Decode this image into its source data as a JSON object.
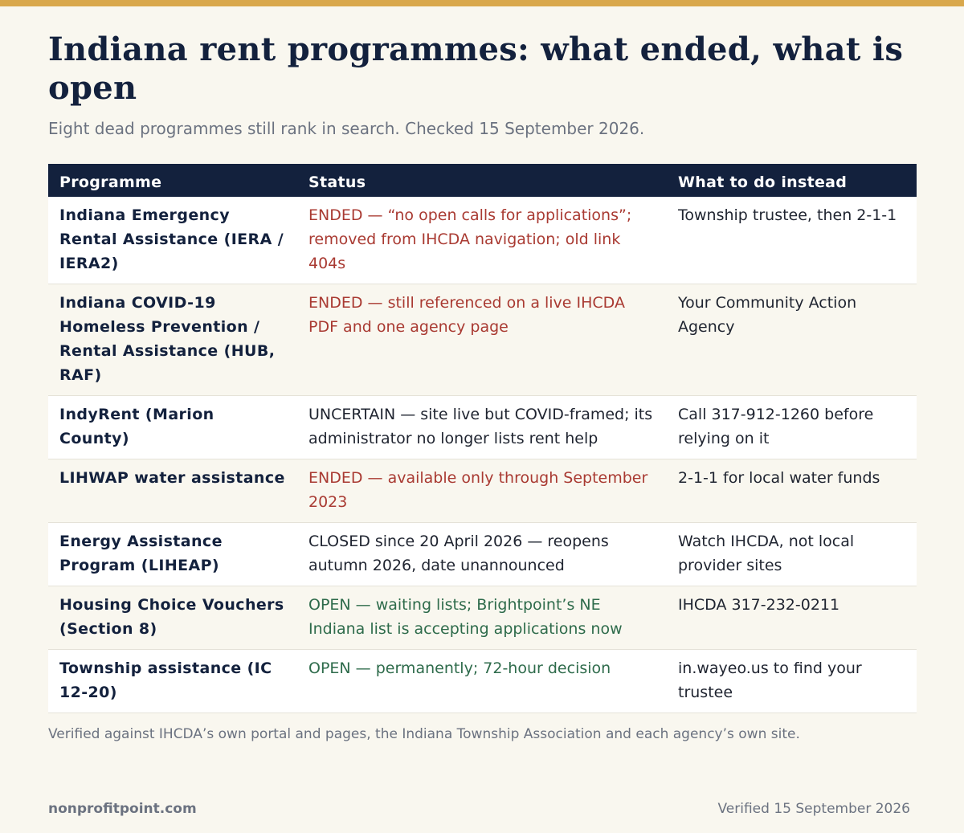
{
  "colors": {
    "accent_bar": "#d9a84c",
    "header_bg": "#13213d",
    "ended": "#a93a32",
    "open": "#2e6b4b",
    "page_bg": "#f9f7ef"
  },
  "header": {
    "title": "Indiana rent programmes: what ended, what is open",
    "subtitle": "Eight dead programmes still rank in search. Checked 15 September 2026."
  },
  "table": {
    "columns": [
      "Programme",
      "Status",
      "What to do instead"
    ],
    "rows": [
      {
        "programme": "Indiana Emergency Rental Assistance (IERA / IERA2)",
        "status": "ENDED — “no open calls for applications”; removed from IHCDA navigation; old link 404s",
        "status_kind": "ended",
        "instead": "Township trustee, then 2-1-1"
      },
      {
        "programme": "Indiana COVID-19 Homeless Prevention / Rental Assistance (HUB, RAF)",
        "status": "ENDED — still referenced on a live IHCDA PDF and one agency page",
        "status_kind": "ended",
        "instead": "Your Community Action Agency"
      },
      {
        "programme": "IndyRent (Marion County)",
        "status": "UNCERTAIN — site live but COVID-framed; its administrator no longer lists rent help",
        "status_kind": "neutral",
        "instead": "Call 317-912-1260 before relying on it"
      },
      {
        "programme": "LIHWAP water assistance",
        "status": "ENDED — available only through September 2023",
        "status_kind": "ended",
        "instead": "2-1-1 for local water funds"
      },
      {
        "programme": "Energy Assistance Program (LIHEAP)",
        "status": "CLOSED since 20 April 2026 — reopens autumn 2026, date unannounced",
        "status_kind": "neutral",
        "instead": "Watch IHCDA, not local provider sites"
      },
      {
        "programme": "Housing Choice Vouchers (Section 8)",
        "status": "OPEN — waiting lists; Brightpoint’s NE Indiana list is accepting applications now",
        "status_kind": "open",
        "instead": "IHCDA 317-232-0211"
      },
      {
        "programme": "Township assistance (IC 12-20)",
        "status": "OPEN — permanently; 72-hour decision",
        "status_kind": "open",
        "instead": "in.wayeo.us to find your trustee"
      }
    ]
  },
  "note": "Verified against IHCDA’s own portal and pages, the Indiana Township Association and each agency’s own site.",
  "footer": {
    "brand": "nonprofitpoint.com",
    "verified": "Verified 15 September 2026"
  }
}
